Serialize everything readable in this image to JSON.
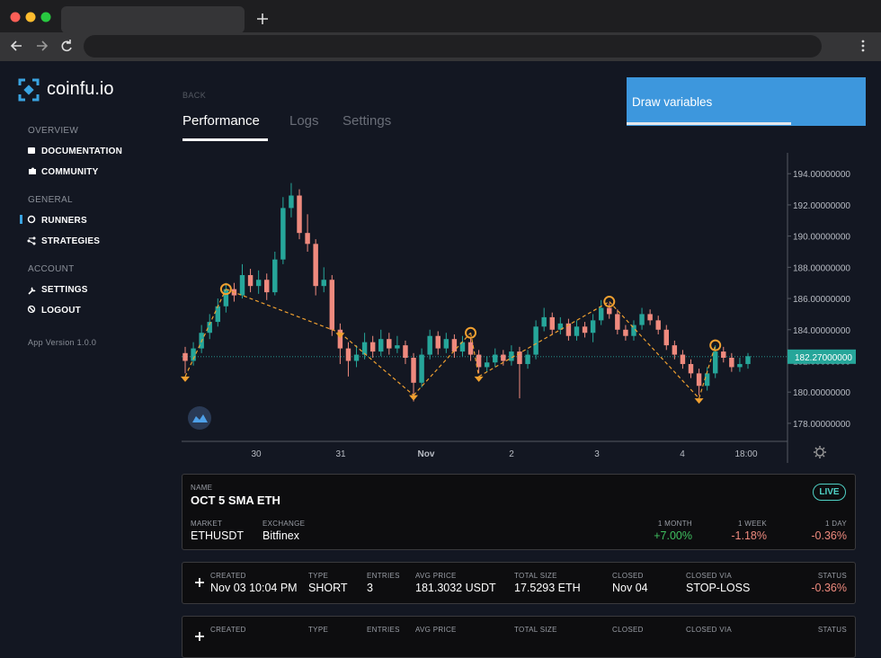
{
  "sidebar": {
    "brand": "coinfu.io",
    "sections": [
      {
        "title": "OVERVIEW",
        "items": [
          "DOCUMENTATION",
          "COMMUNITY"
        ]
      },
      {
        "title": "GENERAL",
        "items": [
          "RUNNERS",
          "STRATEGIES"
        ]
      },
      {
        "title": "ACCOUNT",
        "items": [
          "SETTINGS",
          "LOGOUT"
        ]
      }
    ],
    "version": "App Version 1.0.0"
  },
  "header": {
    "back": "BACK",
    "tabs": [
      "Performance",
      "Logs",
      "Settings"
    ],
    "button": "Draw variables"
  },
  "chart_data": {
    "type": "candlestick",
    "candles": [
      [
        182.5,
        182.9,
        181.2,
        182.0
      ],
      [
        182.0,
        183.2,
        181.7,
        182.8
      ],
      [
        182.8,
        184.3,
        182.5,
        183.8
      ],
      [
        183.8,
        185.0,
        183.4,
        184.5
      ],
      [
        184.5,
        186.0,
        184.2,
        185.5
      ],
      [
        185.5,
        187.0,
        185.1,
        186.6
      ],
      [
        186.6,
        187.0,
        185.8,
        186.2
      ],
      [
        186.2,
        188.2,
        186.0,
        187.5
      ],
      [
        187.5,
        187.9,
        186.4,
        186.8
      ],
      [
        186.8,
        187.8,
        186.3,
        187.2
      ],
      [
        187.2,
        187.6,
        185.9,
        186.4
      ],
      [
        186.4,
        189.0,
        186.2,
        188.5
      ],
      [
        188.5,
        192.5,
        188.2,
        191.8
      ],
      [
        191.8,
        193.4,
        191.2,
        192.6
      ],
      [
        192.6,
        193.0,
        189.8,
        190.2
      ],
      [
        190.2,
        191.4,
        189.0,
        189.5
      ],
      [
        189.5,
        189.8,
        186.2,
        186.8
      ],
      [
        186.8,
        188.0,
        186.4,
        187.2
      ],
      [
        187.2,
        187.5,
        183.6,
        184.0
      ],
      [
        184.0,
        184.4,
        181.8,
        182.8
      ],
      [
        182.8,
        183.2,
        181.0,
        182.0
      ],
      [
        182.0,
        183.0,
        181.6,
        182.4
      ],
      [
        182.4,
        183.8,
        182.1,
        183.2
      ],
      [
        183.2,
        183.6,
        182.2,
        182.6
      ],
      [
        182.6,
        184.0,
        182.3,
        183.4
      ],
      [
        183.4,
        183.8,
        182.4,
        182.8
      ],
      [
        182.8,
        183.6,
        182.5,
        183.0
      ],
      [
        183.0,
        183.3,
        181.8,
        182.2
      ],
      [
        182.2,
        182.5,
        179.4,
        180.6
      ],
      [
        180.6,
        182.8,
        180.3,
        182.4
      ],
      [
        182.4,
        184.0,
        182.1,
        183.6
      ],
      [
        183.6,
        183.9,
        182.4,
        182.8
      ],
      [
        182.8,
        183.8,
        182.5,
        183.4
      ],
      [
        183.4,
        183.7,
        182.2,
        182.6
      ],
      [
        182.6,
        183.6,
        182.3,
        183.2
      ],
      [
        183.2,
        183.5,
        182.0,
        182.4
      ],
      [
        182.4,
        182.7,
        181.2,
        181.6
      ],
      [
        181.6,
        182.3,
        181.3,
        181.9
      ],
      [
        181.9,
        182.8,
        181.6,
        182.4
      ],
      [
        182.4,
        182.7,
        181.7,
        182.0
      ],
      [
        182.0,
        183.0,
        181.7,
        182.6
      ],
      [
        182.6,
        182.9,
        179.6,
        181.8
      ],
      [
        181.8,
        182.7,
        181.5,
        182.4
      ],
      [
        182.4,
        184.6,
        182.1,
        184.2
      ],
      [
        184.2,
        185.4,
        183.9,
        184.8
      ],
      [
        184.8,
        185.1,
        183.7,
        184.0
      ],
      [
        184.0,
        184.8,
        183.7,
        184.4
      ],
      [
        184.4,
        184.7,
        183.3,
        183.6
      ],
      [
        183.6,
        184.6,
        183.3,
        184.2
      ],
      [
        184.2,
        184.5,
        183.5,
        183.8
      ],
      [
        183.8,
        185.0,
        183.2,
        184.6
      ],
      [
        184.6,
        185.9,
        184.3,
        185.4
      ],
      [
        185.4,
        185.7,
        184.7,
        185.0
      ],
      [
        185.0,
        185.3,
        183.7,
        184.0
      ],
      [
        184.0,
        184.3,
        183.3,
        183.6
      ],
      [
        183.6,
        184.6,
        183.3,
        184.3
      ],
      [
        184.3,
        185.4,
        184.0,
        185.0
      ],
      [
        185.0,
        185.3,
        184.3,
        184.6
      ],
      [
        184.6,
        184.9,
        183.7,
        184.0
      ],
      [
        184.0,
        184.3,
        182.7,
        183.0
      ],
      [
        183.0,
        183.3,
        182.1,
        182.4
      ],
      [
        182.4,
        182.7,
        181.5,
        181.8
      ],
      [
        181.8,
        182.1,
        180.9,
        181.2
      ],
      [
        181.2,
        181.5,
        179.8,
        180.4
      ],
      [
        180.4,
        181.6,
        180.1,
        181.2
      ],
      [
        181.2,
        183.0,
        180.9,
        182.6
      ],
      [
        182.6,
        182.9,
        181.9,
        182.2
      ],
      [
        182.2,
        182.5,
        181.3,
        181.6
      ],
      [
        181.6,
        182.2,
        181.3,
        181.8
      ],
      [
        181.8,
        182.5,
        181.5,
        182.3
      ]
    ],
    "entries": [
      null,
      null,
      null,
      null,
      null,
      186.6,
      null,
      null,
      null,
      null,
      null,
      null,
      null,
      null,
      null,
      null,
      null,
      null,
      null,
      null,
      null,
      null,
      null,
      null,
      null,
      null,
      null,
      null,
      null,
      null,
      null,
      null,
      null,
      null,
      null,
      183.8,
      null,
      null,
      null,
      null,
      null,
      null,
      null,
      null,
      null,
      null,
      null,
      null,
      null,
      null,
      null,
      null,
      185.8,
      null,
      null,
      null,
      null,
      null,
      null,
      null,
      null,
      null,
      null,
      null,
      null,
      183.0,
      null,
      null,
      null,
      null
    ],
    "exits": [
      181.0,
      null,
      null,
      null,
      null,
      null,
      null,
      null,
      null,
      null,
      null,
      null,
      null,
      null,
      null,
      null,
      null,
      null,
      null,
      183.8,
      null,
      null,
      null,
      null,
      null,
      null,
      null,
      null,
      179.8,
      null,
      null,
      null,
      null,
      null,
      null,
      null,
      181.0,
      null,
      null,
      null,
      null,
      null,
      null,
      null,
      null,
      null,
      null,
      null,
      null,
      null,
      null,
      null,
      null,
      null,
      null,
      null,
      null,
      null,
      null,
      null,
      null,
      null,
      null,
      179.6,
      null,
      null,
      null,
      null,
      null,
      null
    ],
    "up_color": "#26a69a",
    "down_color": "#ef8a7e",
    "marker_color": "#f0a030",
    "ylim": [
      176.9,
      195.05
    ],
    "yticks": [
      {
        "value": 178,
        "label": "178.00000000"
      },
      {
        "value": 180,
        "label": "180.00000000"
      },
      {
        "value": 182,
        "label": "182.00000000"
      },
      {
        "value": 184,
        "label": "184.00000000"
      },
      {
        "value": 186,
        "label": "186.00000000"
      },
      {
        "value": 188,
        "label": "188.00000000"
      },
      {
        "value": 190,
        "label": "190.00000000"
      },
      {
        "value": 192,
        "label": "192.00000000"
      },
      {
        "value": 194,
        "label": "194.00000000"
      }
    ],
    "x_labels": [
      "30",
      "31",
      "Nov",
      "2",
      "3",
      "4",
      "18:00"
    ],
    "last_price": {
      "value": 182.27,
      "label": "182.27000000"
    }
  },
  "runner": {
    "name_label": "NAME",
    "name": "OCT 5 SMA ETH",
    "status": "LIVE",
    "fields": [
      {
        "label": "MARKET",
        "value": "ETHUSDT"
      },
      {
        "label": "EXCHANGE",
        "value": "Bitfinex"
      }
    ],
    "performance": [
      {
        "label": "1 MONTH",
        "value": "+7.00%"
      },
      {
        "label": "1 WEEK",
        "value": "-1.18%"
      },
      {
        "label": "1 DAY",
        "value": "-0.36%"
      }
    ]
  },
  "trades": {
    "headers": [
      "CREATED",
      "TYPE",
      "ENTRIES",
      "AVG PRICE",
      "TOTAL SIZE",
      "CLOSED",
      "CLOSED VIA",
      "STATUS"
    ],
    "rows": [
      [
        "Nov 03 10:04 PM",
        "SHORT",
        "3",
        "181.3032 USDT",
        "17.5293 ETH",
        "Nov 04",
        "STOP-LOSS",
        "-0.36%"
      ]
    ]
  }
}
